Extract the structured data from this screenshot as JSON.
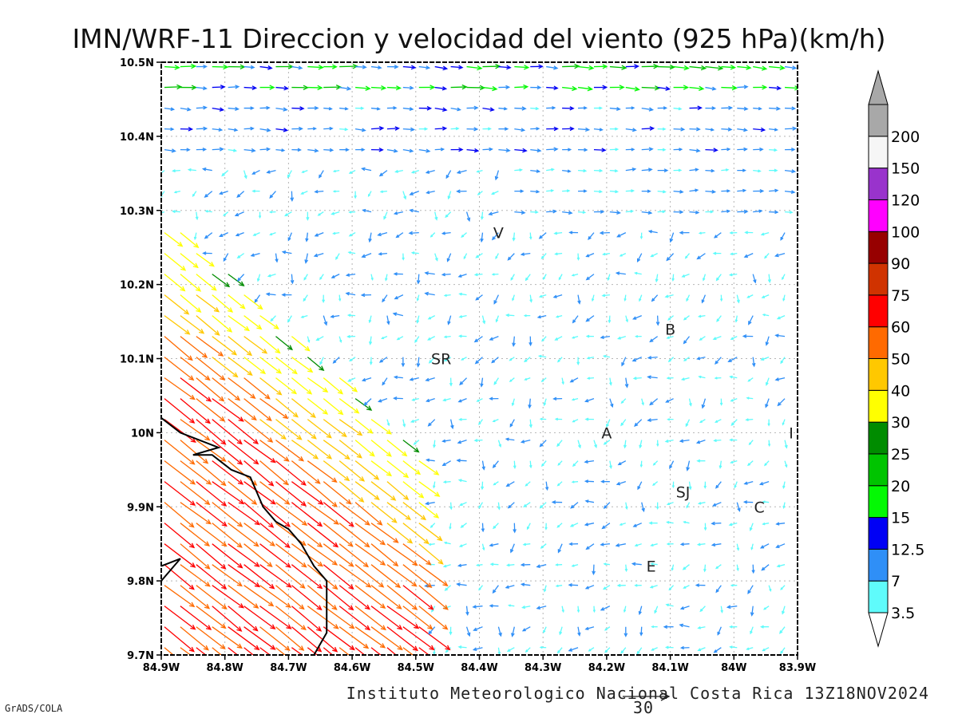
{
  "title": "IMN/WRF-11 Direccion y velocidad del viento (925 hPa)(km/h)",
  "footer": {
    "institution": "Instituto Meteorologico Nacional Costa Rica 13Z18NOV2024",
    "software": "GrADS/COLA",
    "reference_vector_label": "30"
  },
  "map": {
    "lon_range": [
      -84.9,
      -83.9
    ],
    "lat_range": [
      9.7,
      10.5
    ],
    "grid": "dotted",
    "lon_tick_labels": [
      "84.9W",
      "84.8W",
      "84.7W",
      "84.6W",
      "84.5W",
      "84.4W",
      "84.3W",
      "84.2W",
      "84.1W",
      "84W",
      "83.9W"
    ],
    "lat_tick_labels": [
      "9.7N",
      "9.8N",
      "9.9N",
      "10N",
      "10.1N",
      "10.2N",
      "10.3N",
      "10.4N",
      "10.5N"
    ],
    "lon_ticks": [
      -84.9,
      -84.8,
      -84.7,
      -84.6,
      -84.5,
      -84.4,
      -84.3,
      -84.2,
      -84.1,
      -84.0,
      -83.9
    ],
    "lat_ticks": [
      9.7,
      9.8,
      9.9,
      10.0,
      10.1,
      10.2,
      10.3,
      10.4,
      10.5
    ],
    "places": [
      {
        "label": "V",
        "lon": -84.37,
        "lat": 10.27
      },
      {
        "label": "B",
        "lon": -84.1,
        "lat": 10.14
      },
      {
        "label": "SR",
        "lon": -84.46,
        "lat": 10.1
      },
      {
        "label": "A",
        "lon": -84.2,
        "lat": 10.0
      },
      {
        "label": "I",
        "lon": -83.91,
        "lat": 10.0
      },
      {
        "label": "SJ",
        "lon": -84.08,
        "lat": 9.92
      },
      {
        "label": "C",
        "lon": -83.96,
        "lat": 9.9
      },
      {
        "label": "E",
        "lon": -84.13,
        "lat": 9.82
      }
    ],
    "coastline": [
      [
        [
          -84.9,
          10.02
        ],
        [
          -84.87,
          10.0
        ],
        [
          -84.84,
          9.99
        ],
        [
          -84.81,
          9.98
        ],
        [
          -84.85,
          9.97
        ],
        [
          -84.82,
          9.97
        ],
        [
          -84.79,
          9.95
        ],
        [
          -84.76,
          9.94
        ],
        [
          -84.74,
          9.9
        ],
        [
          -84.72,
          9.88
        ],
        [
          -84.7,
          9.87
        ],
        [
          -84.68,
          9.85
        ],
        [
          -84.66,
          9.82
        ],
        [
          -84.64,
          9.8
        ],
        [
          -84.64,
          9.73
        ],
        [
          -84.66,
          9.7
        ]
      ],
      [
        [
          -84.9,
          9.82
        ],
        [
          -84.87,
          9.83
        ],
        [
          -84.9,
          9.8
        ]
      ]
    ]
  },
  "colorbar": {
    "labels": [
      "3.5",
      "7",
      "12.5",
      "15",
      "20",
      "25",
      "30",
      "40",
      "50",
      "60",
      "75",
      "90",
      "100",
      "120",
      "150",
      "200"
    ],
    "colors": [
      "#5ffbfb",
      "#2f8ff7",
      "#0000f5",
      "#04f904",
      "#00c400",
      "#008c00",
      "#ffff00",
      "#ffc800",
      "#ff6a00",
      "#ff0000",
      "#d03300",
      "#970000",
      "#ff00ff",
      "#9933cc",
      "#f6f6f6",
      "#a8a8a8"
    ]
  },
  "chart_data": {
    "type": "vector_field",
    "units": "km/h",
    "level": "925 hPa",
    "regions": [
      {
        "area": "southwest lowlands / Pacific side (84.9W-84.5W, 9.7N-10.3N)",
        "direction": "from northwest toward southeast",
        "speed_range": [
          30,
          60
        ]
      },
      {
        "area": "northern strip (10.38N-10.5N)",
        "direction": "from west toward east",
        "speed_range": [
          7,
          25
        ]
      },
      {
        "area": "central valley and interior",
        "direction": "variable, mostly toward southwest/west",
        "speed_range": [
          3.5,
          15
        ]
      }
    ]
  }
}
